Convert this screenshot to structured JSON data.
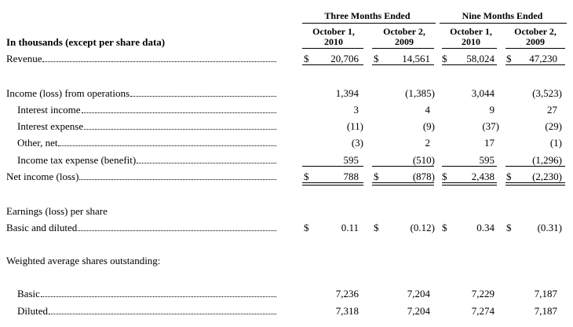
{
  "currency": "$",
  "header": {
    "row_label": "In thousands (except per share data)",
    "groups": [
      "Three Months Ended",
      "Nine Months Ended"
    ],
    "columns": [
      [
        "October 1,",
        "2010"
      ],
      [
        "October 2,",
        "2009"
      ],
      [
        "October 1,",
        "2010"
      ],
      [
        "October 2,",
        "2009"
      ]
    ]
  },
  "rows": [
    {
      "label": "Revenue",
      "level": 0,
      "leader": true,
      "dollar": true,
      "rule": "single",
      "cells": [
        "20,706",
        "14,561",
        "58,024",
        "47,230"
      ]
    },
    {
      "label": "Income (loss) from operations",
      "level": 0,
      "leader": true,
      "cells": [
        "1,394",
        "(1,385)",
        "3,044",
        "(3,523)"
      ]
    },
    {
      "label": "Interest income",
      "level": 1,
      "leader": true,
      "cells": [
        "3",
        "4",
        "9",
        "27"
      ]
    },
    {
      "label": "Interest expense",
      "level": 1,
      "leader": true,
      "cells": [
        "(11)",
        "(9)",
        "(37)",
        "(29)"
      ]
    },
    {
      "label": "Other, net",
      "level": 1,
      "leader": true,
      "cells": [
        "(3)",
        "2",
        "17",
        "(1)"
      ]
    },
    {
      "label": "Income tax expense (benefit)",
      "level": 1,
      "leader": true,
      "rule": "single",
      "cells": [
        "595",
        "(510)",
        "595",
        "(1,296)"
      ]
    },
    {
      "label": "Net income (loss)",
      "level": 0,
      "leader": true,
      "dollar": true,
      "rule": "double",
      "cells": [
        "788",
        "(878)",
        "2,438",
        "(2,230)"
      ]
    },
    {
      "label": "Earnings (loss) per share",
      "level": 0
    },
    {
      "label": "Basic and diluted",
      "level": 0,
      "leader": true,
      "dollar": true,
      "cells": [
        "0.11",
        "(0.12)",
        "0.34",
        "(0.31)"
      ]
    },
    {
      "label": "Weighted average shares outstanding:",
      "level": 0
    },
    {
      "label": "Basic",
      "level": 1,
      "leader": true,
      "cells": [
        "7,236",
        "7,204",
        "7,229",
        "7,187"
      ]
    },
    {
      "label": "Diluted",
      "level": 1,
      "leader": true,
      "cells": [
        "7,318",
        "7,204",
        "7,274",
        "7,187"
      ]
    }
  ]
}
